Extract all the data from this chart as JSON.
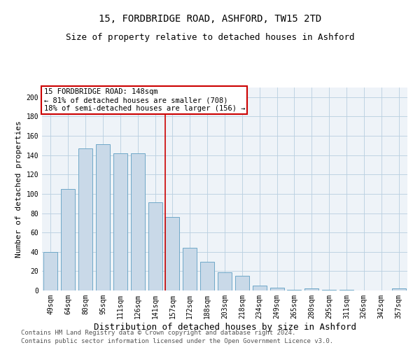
{
  "title1": "15, FORDBRIDGE ROAD, ASHFORD, TW15 2TD",
  "title2": "Size of property relative to detached houses in Ashford",
  "xlabel": "Distribution of detached houses by size in Ashford",
  "ylabel": "Number of detached properties",
  "categories": [
    "49sqm",
    "64sqm",
    "80sqm",
    "95sqm",
    "111sqm",
    "126sqm",
    "141sqm",
    "157sqm",
    "172sqm",
    "188sqm",
    "203sqm",
    "218sqm",
    "234sqm",
    "249sqm",
    "265sqm",
    "280sqm",
    "295sqm",
    "311sqm",
    "326sqm",
    "342sqm",
    "357sqm"
  ],
  "values": [
    40,
    105,
    147,
    151,
    142,
    142,
    91,
    76,
    44,
    30,
    19,
    15,
    5,
    3,
    1,
    2,
    1,
    1,
    0,
    0,
    2
  ],
  "bar_color": "#c9d9e8",
  "bar_edge_color": "#6fa8c8",
  "grid_color": "#b8cfe0",
  "background_color": "#eef3f8",
  "annotation_box_text": "15 FORDBRIDGE ROAD: 148sqm\n← 81% of detached houses are smaller (708)\n18% of semi-detached houses are larger (156) →",
  "annotation_box_color": "#cc0000",
  "vline_x_index": 7,
  "vline_color": "#cc0000",
  "ylim": [
    0,
    210
  ],
  "yticks": [
    0,
    20,
    40,
    60,
    80,
    100,
    120,
    140,
    160,
    180,
    200
  ],
  "footer1": "Contains HM Land Registry data © Crown copyright and database right 2024.",
  "footer2": "Contains public sector information licensed under the Open Government Licence v3.0.",
  "title1_fontsize": 10,
  "title2_fontsize": 9,
  "xlabel_fontsize": 9,
  "ylabel_fontsize": 8,
  "tick_fontsize": 7,
  "annot_fontsize": 7.5,
  "footer_fontsize": 6.5
}
